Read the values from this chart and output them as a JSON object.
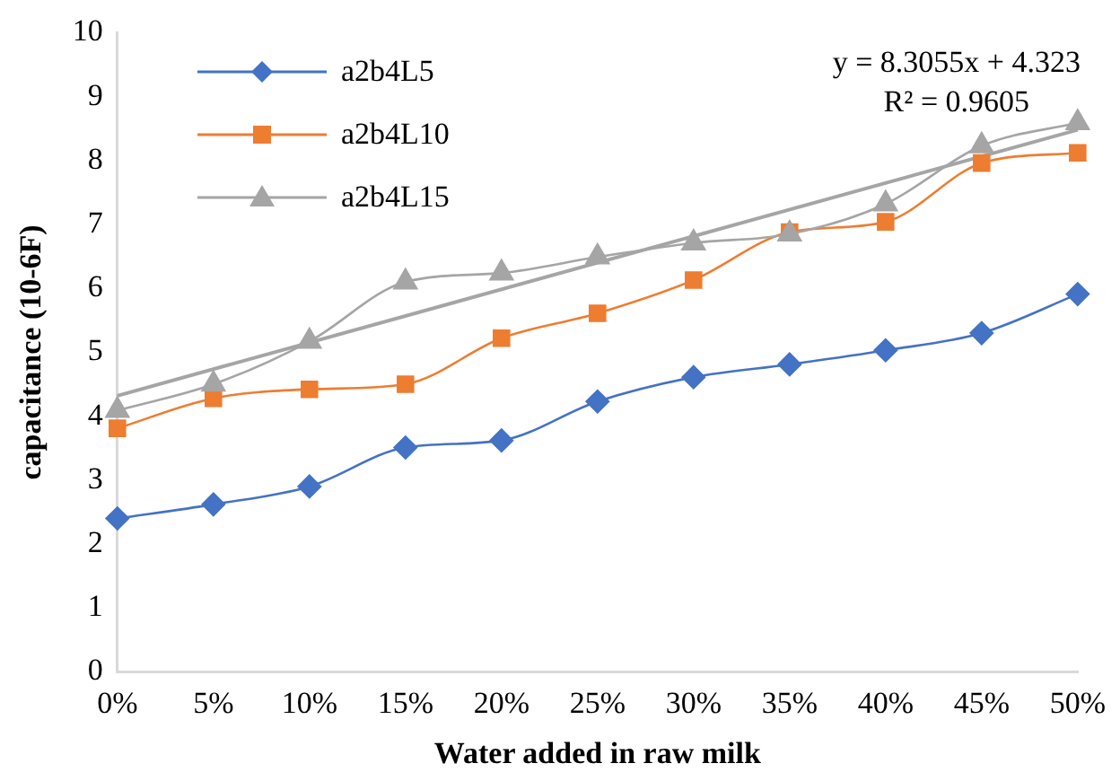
{
  "chart_data": {
    "type": "line",
    "xlabel": "Water added in raw milk",
    "ylabel": "capacitance (10-6F)",
    "categories": [
      "0%",
      "5%",
      "10%",
      "15%",
      "20%",
      "25%",
      "30%",
      "35%",
      "40%",
      "45%",
      "50%"
    ],
    "series": [
      {
        "name": "a2b4L5",
        "color": "#4472c4",
        "marker": "diamond",
        "values": [
          2.4,
          2.62,
          2.9,
          3.51,
          3.62,
          4.23,
          4.61,
          4.81,
          5.03,
          5.3,
          5.91
        ]
      },
      {
        "name": "a2b4L10",
        "color": "#ed7d31",
        "marker": "square",
        "values": [
          3.81,
          4.28,
          4.42,
          4.5,
          5.22,
          5.61,
          6.13,
          6.88,
          7.04,
          7.96,
          8.12
        ]
      },
      {
        "name": "a2b4L15",
        "color": "#a5a5a5",
        "marker": "triangle",
        "values": [
          4.09,
          4.5,
          5.17,
          6.1,
          6.24,
          6.49,
          6.71,
          6.85,
          7.32,
          8.23,
          8.59
        ]
      },
      {
        "type": "line",
        "color": "#a5a5a5",
        "marker": "none",
        "x": [
          "0%",
          "50%"
        ],
        "values": [
          4.32,
          8.48
        ]
      }
    ],
    "annotations": [
      "y = 8.3055x + 4.323\nR² = 0.9605"
    ],
    "ylim": [
      0,
      10
    ],
    "yticks": [
      0,
      1,
      2,
      3,
      4,
      5,
      6,
      7,
      8,
      9,
      10
    ],
    "grid": false,
    "legend": "top left"
  }
}
